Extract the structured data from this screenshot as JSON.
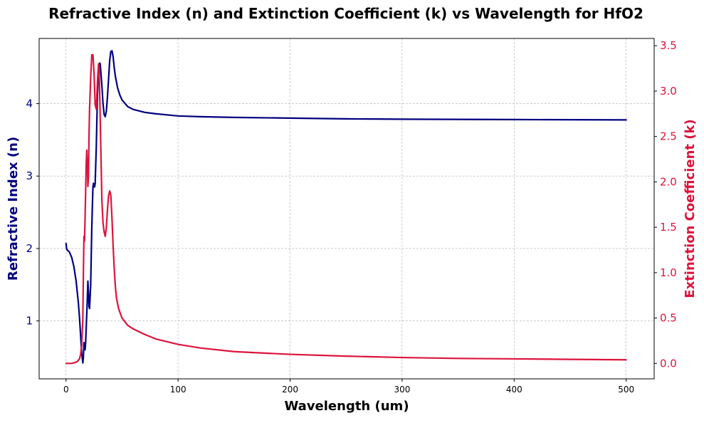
{
  "chart_data": {
    "type": "line",
    "title": "Refractive Index (n) and Extinction Coefficient (k) vs Wavelength for HfO2",
    "xlabel": "Wavelength (um)",
    "ylabel_left": "Refractive Index (n)",
    "ylabel_right": "Extinction Coefficient (k)",
    "xlim": [
      -24,
      525
    ],
    "ylim_left": [
      0.2,
      4.9
    ],
    "ylim_right": [
      -0.17,
      3.58
    ],
    "x_ticks": [
      0,
      100,
      200,
      300,
      400,
      500
    ],
    "x_tick_labels": [
      "0",
      "100",
      "200",
      "300",
      "400",
      "500"
    ],
    "y_left_ticks": [
      1,
      2,
      3,
      4
    ],
    "y_left_tick_labels": [
      "1",
      "2",
      "3",
      "4"
    ],
    "y_right_ticks": [
      0.0,
      0.5,
      1.0,
      1.5,
      2.0,
      2.5,
      3.0,
      3.5
    ],
    "y_right_tick_labels": [
      "0.0",
      "0.5",
      "1.0",
      "1.5",
      "2.0",
      "2.5",
      "3.0",
      "3.5"
    ],
    "grid": true,
    "colors": {
      "n": "#000080",
      "k": "#dc143c"
    },
    "series": [
      {
        "key": "n",
        "axis": "left",
        "x": [
          0,
          0.5,
          1,
          3,
          5,
          7,
          9,
          11,
          12,
          13,
          14,
          15,
          15.5,
          16,
          16.5,
          17,
          17.5,
          18,
          19,
          19.5,
          20,
          20.5,
          21,
          22,
          23,
          24,
          24.5,
          25,
          25.5,
          26,
          27,
          28,
          29,
          30,
          30.5,
          31,
          32,
          33,
          34,
          35,
          36,
          37,
          38,
          39,
          40,
          41,
          42,
          43,
          44,
          46,
          48,
          50,
          55,
          60,
          70,
          80,
          100,
          120,
          150,
          200,
          250,
          300,
          400,
          500
        ],
        "y": [
          2.07,
          2.0,
          1.98,
          1.95,
          1.88,
          1.75,
          1.55,
          1.25,
          1.05,
          0.8,
          0.55,
          0.42,
          0.5,
          0.7,
          0.65,
          0.6,
          0.7,
          0.9,
          1.3,
          1.55,
          1.4,
          1.2,
          1.17,
          1.5,
          2.3,
          2.85,
          2.9,
          2.85,
          2.85,
          2.9,
          3.4,
          4.1,
          4.5,
          4.56,
          4.55,
          4.45,
          4.25,
          4.0,
          3.85,
          3.82,
          3.9,
          4.1,
          4.35,
          4.6,
          4.72,
          4.73,
          4.65,
          4.5,
          4.38,
          4.22,
          4.12,
          4.05,
          3.96,
          3.92,
          3.88,
          3.86,
          3.83,
          3.82,
          3.81,
          3.8,
          3.79,
          3.785,
          3.78,
          3.775
        ]
      },
      {
        "key": "k",
        "axis": "right",
        "x": [
          0,
          5,
          8,
          10,
          12,
          13,
          14,
          15,
          15.5,
          16,
          16.5,
          17,
          17.5,
          18,
          18.5,
          19,
          19.5,
          20,
          20.5,
          21,
          22,
          23,
          24,
          25,
          26,
          27,
          28,
          29,
          29.5,
          30,
          31,
          32,
          33,
          34,
          35,
          36,
          37,
          38,
          39,
          40,
          41,
          42,
          43,
          44,
          45,
          47,
          50,
          55,
          60,
          70,
          80,
          100,
          120,
          150,
          200,
          250,
          300,
          350,
          400,
          450,
          500
        ],
        "y": [
          0.0,
          0.0,
          0.01,
          0.02,
          0.05,
          0.1,
          0.2,
          0.5,
          1.0,
          1.4,
          1.35,
          1.6,
          1.9,
          2.2,
          2.35,
          2.2,
          1.95,
          2.05,
          2.5,
          2.8,
          3.15,
          3.4,
          3.4,
          3.2,
          2.85,
          2.8,
          3.1,
          3.3,
          3.25,
          3.0,
          2.4,
          1.8,
          1.55,
          1.45,
          1.4,
          1.5,
          1.7,
          1.85,
          1.9,
          1.85,
          1.6,
          1.3,
          1.05,
          0.85,
          0.72,
          0.6,
          0.5,
          0.42,
          0.38,
          0.32,
          0.27,
          0.21,
          0.17,
          0.13,
          0.1,
          0.08,
          0.065,
          0.055,
          0.05,
          0.045,
          0.04
        ]
      }
    ]
  }
}
